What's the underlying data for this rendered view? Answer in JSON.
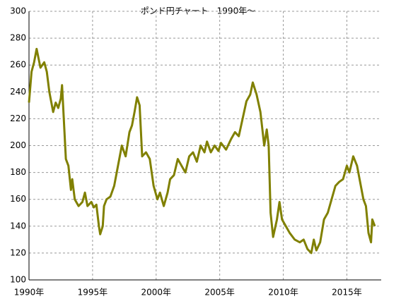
{
  "chart_data": {
    "type": "line",
    "title": "ポンド円チャート　1990年～",
    "x": [
      1990.0,
      1990.2,
      1990.4,
      1990.6,
      1990.9,
      1991.2,
      1991.4,
      1991.6,
      1991.9,
      1992.1,
      1992.3,
      1992.5,
      1992.6,
      1992.9,
      1993.1,
      1993.3,
      1993.4,
      1993.6,
      1993.9,
      1994.2,
      1994.4,
      1994.6,
      1994.9,
      1995.1,
      1995.3,
      1995.5,
      1995.6,
      1995.8,
      1995.9,
      1996.1,
      1996.4,
      1996.7,
      1997.0,
      1997.3,
      1997.6,
      1997.9,
      1998.1,
      1998.3,
      1998.5,
      1998.7,
      1998.9,
      1999.2,
      1999.5,
      1999.8,
      2000.1,
      2000.3,
      2000.6,
      2000.9,
      2001.1,
      2001.4,
      2001.7,
      2002.0,
      2002.3,
      2002.6,
      2002.9,
      2003.2,
      2003.5,
      2003.8,
      2004.0,
      2004.3,
      2004.6,
      2004.9,
      2005.1,
      2005.5,
      2005.9,
      2006.2,
      2006.5,
      2006.8,
      2007.1,
      2007.4,
      2007.6,
      2007.9,
      2008.2,
      2008.5,
      2008.7,
      2008.85,
      2009.0,
      2009.2,
      2009.5,
      2009.7,
      2009.9,
      2010.2,
      2010.5,
      2010.9,
      2011.3,
      2011.6,
      2011.9,
      2012.2,
      2012.4,
      2012.6,
      2012.9,
      2013.2,
      2013.5,
      2013.8,
      2014.1,
      2014.4,
      2014.7,
      2015.0,
      2015.2,
      2015.5,
      2015.8,
      2016.0,
      2016.3,
      2016.5,
      2016.7,
      2016.9,
      2017.0,
      2017.2
    ],
    "series": [
      {
        "color": "#808000",
        "values": [
          232,
          255,
          262,
          272,
          258,
          262,
          255,
          240,
          225,
          232,
          228,
          235,
          245,
          190,
          185,
          167,
          175,
          160,
          155,
          158,
          165,
          155,
          158,
          154,
          156,
          140,
          134,
          140,
          155,
          160,
          162,
          170,
          185,
          200,
          192,
          210,
          215,
          225,
          236,
          230,
          192,
          195,
          190,
          170,
          160,
          165,
          155,
          165,
          175,
          178,
          190,
          185,
          180,
          192,
          195,
          188,
          200,
          195,
          203,
          195,
          200,
          196,
          202,
          197,
          205,
          210,
          207,
          220,
          233,
          238,
          247,
          238,
          225,
          200,
          212,
          200,
          150,
          132,
          145,
          158,
          145,
          140,
          135,
          130,
          128,
          130,
          123,
          120,
          130,
          122,
          128,
          145,
          150,
          160,
          170,
          173,
          175,
          185,
          180,
          192,
          185,
          175,
          160,
          155,
          135,
          128,
          145,
          140
        ]
      }
    ],
    "xlim": [
      1990,
      2017.7
    ],
    "ylim": [
      100,
      300
    ],
    "xticks": [
      {
        "value": 1990,
        "label": "1990年"
      },
      {
        "value": 1995,
        "label": "1995年"
      },
      {
        "value": 2000,
        "label": "2000年"
      },
      {
        "value": 2005,
        "label": "2005年"
      },
      {
        "value": 2010,
        "label": "2010年"
      },
      {
        "value": 2015,
        "label": "2015年"
      }
    ],
    "yticks": [
      100,
      120,
      140,
      160,
      180,
      200,
      220,
      240,
      260,
      280,
      300
    ],
    "grid": true
  }
}
